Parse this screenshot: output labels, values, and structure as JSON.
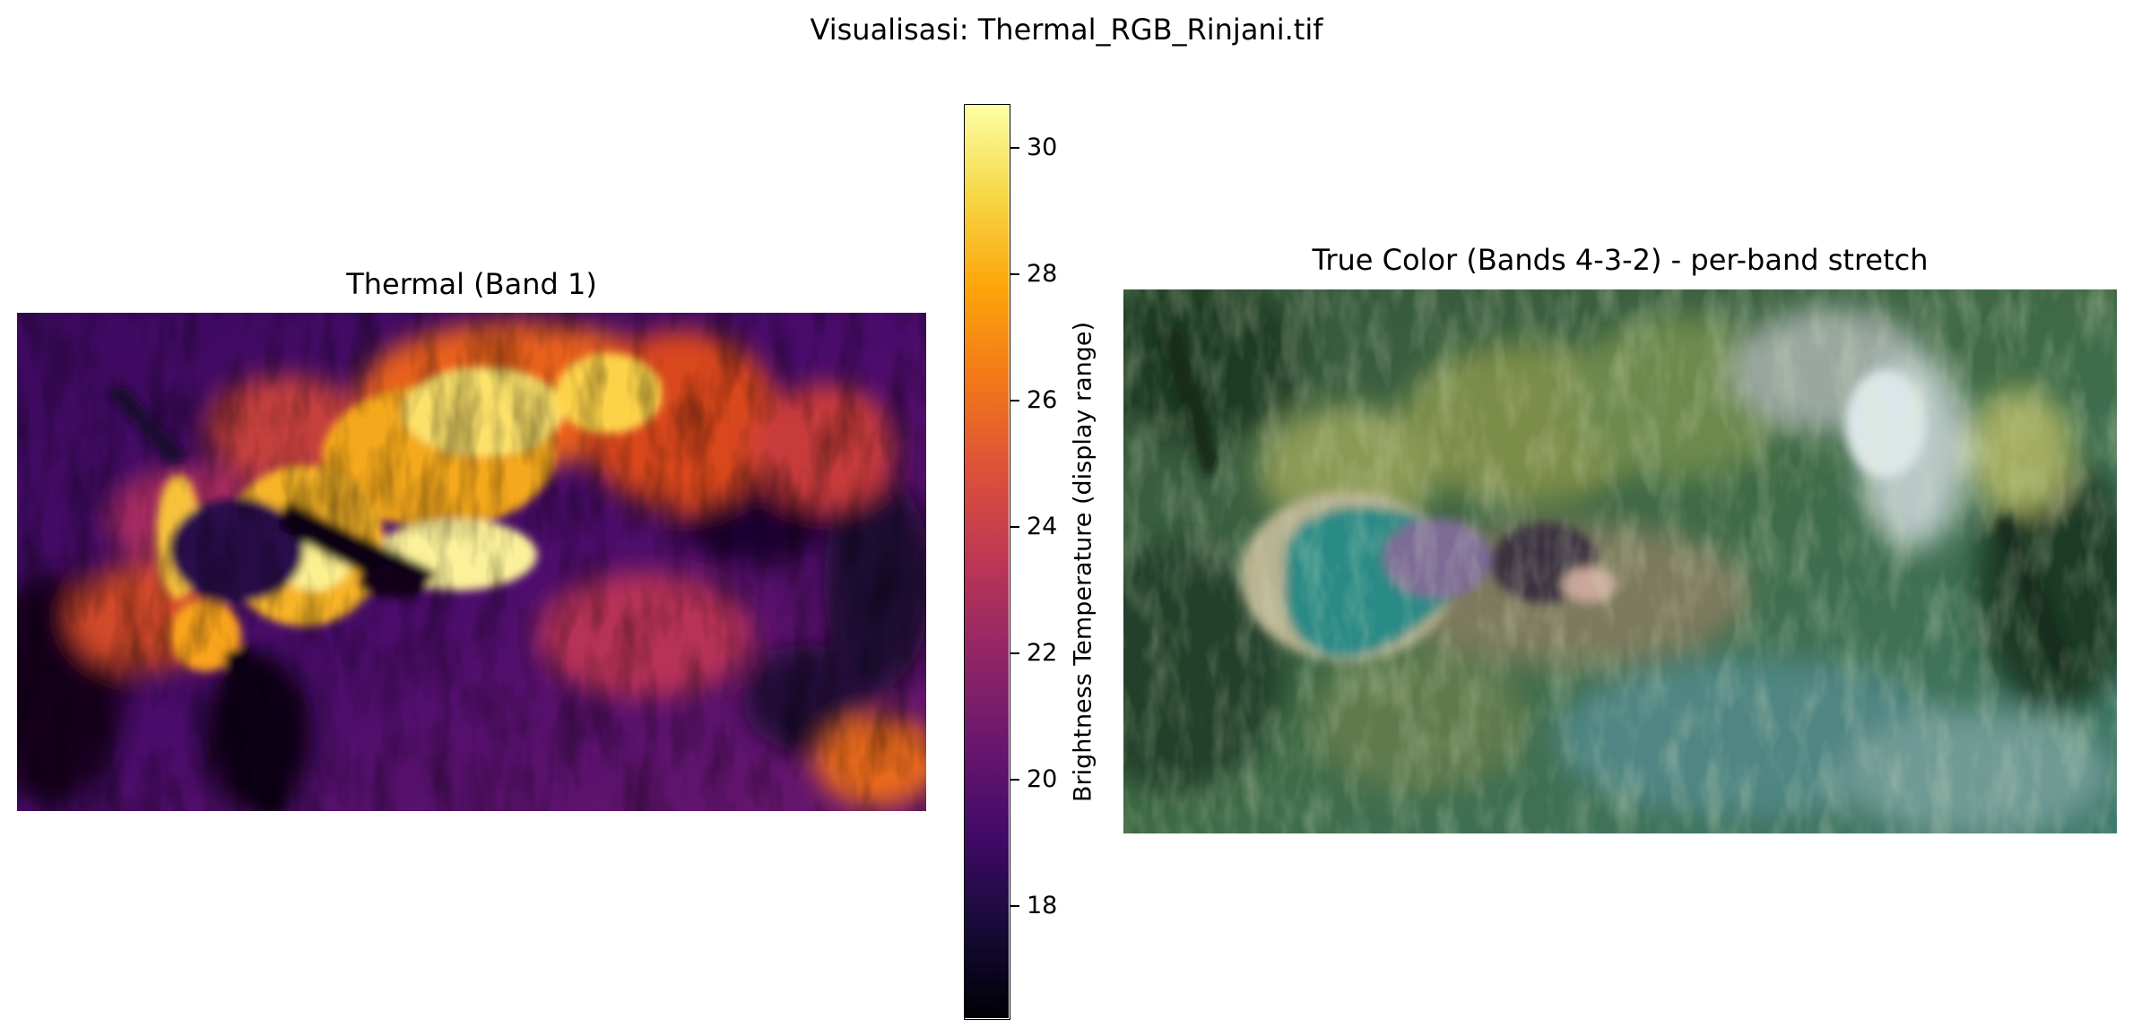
{
  "figure": {
    "suptitle": "Visualisasi: Thermal_RGB_Rinjani.tif"
  },
  "thermal_panel": {
    "title": "Thermal (Band 1)",
    "colormap": "inferno"
  },
  "colorbar": {
    "label": "Brightness Temperature (display range)",
    "range": [
      16.2,
      30.7
    ],
    "ticks": [
      "18",
      "20",
      "22",
      "24",
      "26",
      "28",
      "30"
    ],
    "tick_values": [
      18,
      20,
      22,
      24,
      26,
      28,
      30
    ]
  },
  "rgb_panel": {
    "title": "True Color (Bands 4-3-2) - per-band stretch"
  },
  "colors": {
    "inferno_dark": "#000004",
    "inferno_purple": "#56106e",
    "inferno_red": "#bb3754",
    "inferno_orange": "#f98e09",
    "inferno_yellow": "#fcffa4",
    "lake_teal": "#2e8c8a",
    "forest_green": "#2f5a33"
  }
}
